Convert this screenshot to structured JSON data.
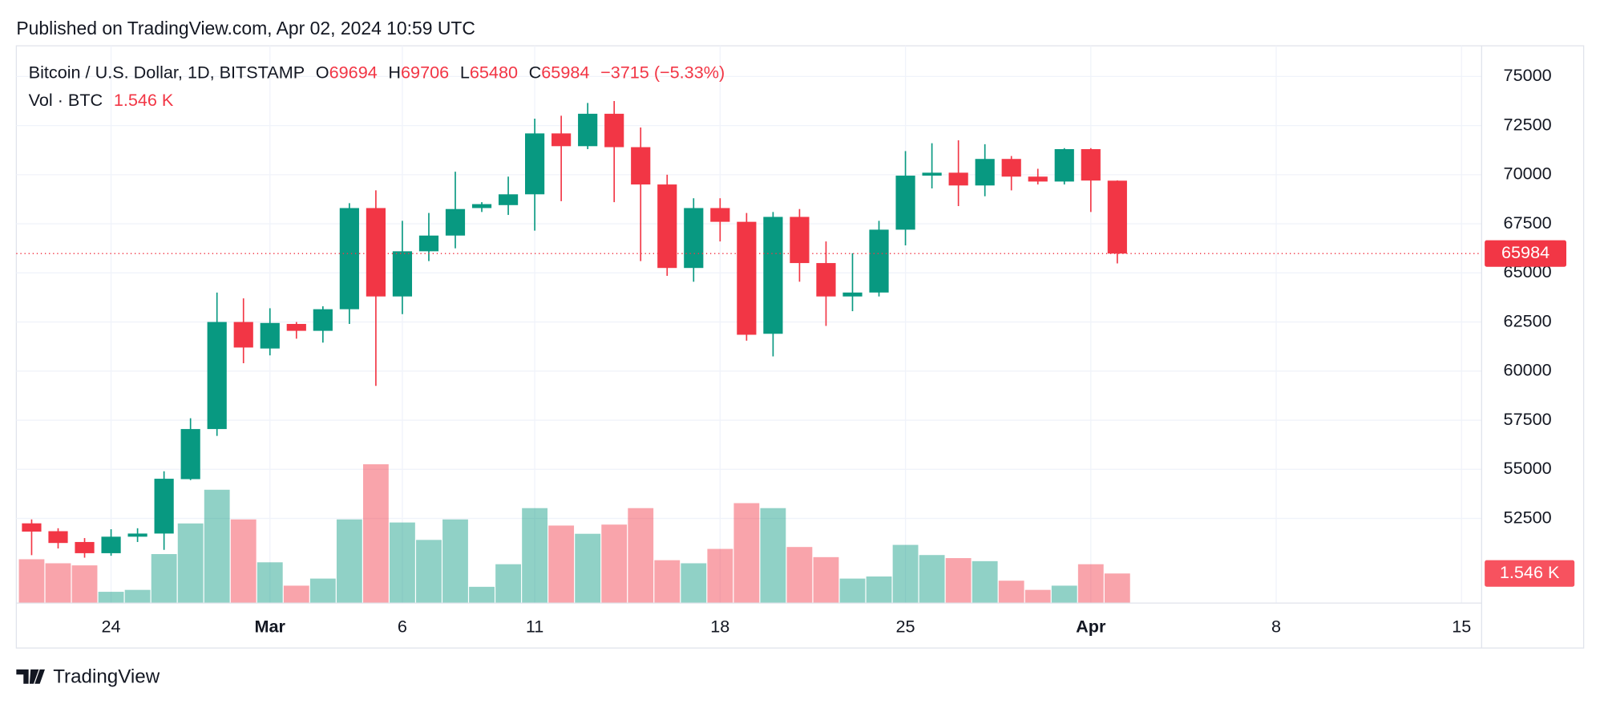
{
  "published": "Published on TradingView.com, Apr 02, 2024 10:59 UTC",
  "brand": "TradingView",
  "chart_data": {
    "type": "candlestick",
    "title": "Bitcoin / U.S. Dollar, 1D, BITSTAMP",
    "ohlc_labels": {
      "open": "O",
      "high": "H",
      "low": "L",
      "close": "C"
    },
    "change_label": "−3715 (−5.33%)",
    "up_color": "#089981",
    "down_color": "#f23645",
    "x": [
      "Feb 21",
      "Feb 22",
      "Feb 23",
      "Feb 24",
      "Feb 25",
      "Feb 26",
      "Feb 27",
      "Feb 28",
      "Feb 29",
      "Mar 1",
      "Mar 2",
      "Mar 3",
      "Mar 4",
      "Mar 5",
      "Mar 6",
      "Mar 7",
      "Mar 8",
      "Mar 9",
      "Mar 10",
      "Mar 11",
      "Mar 12",
      "Mar 13",
      "Mar 14",
      "Mar 15",
      "Mar 16",
      "Mar 17",
      "Mar 18",
      "Mar 19",
      "Mar 20",
      "Mar 21",
      "Mar 22",
      "Mar 23",
      "Mar 24",
      "Mar 25",
      "Mar 26",
      "Mar 27",
      "Mar 28",
      "Mar 29",
      "Mar 30",
      "Mar 31",
      "Apr 1",
      "Apr 2"
    ],
    "open": [
      52250,
      51850,
      51300,
      50730,
      51570,
      51730,
      54500,
      57050,
      62500,
      61150,
      62400,
      62050,
      63150,
      68300,
      63800,
      66100,
      66900,
      68300,
      68450,
      69000,
      72100,
      71450,
      73100,
      71400,
      69500,
      65250,
      68300,
      67600,
      61900,
      67850,
      65500,
      63800,
      64000,
      67200,
      69950,
      70100,
      69450,
      70800,
      69900,
      69650,
      71300,
      69694
    ],
    "high": [
      52450,
      52000,
      51500,
      51950,
      52000,
      54900,
      57600,
      64000,
      63700,
      63200,
      62500,
      63300,
      68550,
      69200,
      67650,
      68050,
      70150,
      68600,
      69900,
      72850,
      73000,
      73650,
      73750,
      72400,
      70000,
      68800,
      68800,
      68050,
      68100,
      68250,
      66600,
      66000,
      67650,
      71200,
      71600,
      71750,
      71550,
      70950,
      70300,
      71350,
      71350,
      69706
    ],
    "low": [
      50630,
      50970,
      50500,
      50600,
      51300,
      50900,
      54450,
      56700,
      60400,
      60800,
      61650,
      61450,
      62400,
      59250,
      62900,
      65600,
      66250,
      68100,
      67950,
      67150,
      68650,
      71300,
      68600,
      65600,
      64850,
      64550,
      66600,
      61550,
      60750,
      64550,
      62300,
      63050,
      63800,
      66400,
      69300,
      68400,
      68900,
      69200,
      69500,
      69500,
      68100,
      65480
    ],
    "close": [
      51830,
      51250,
      50730,
      51570,
      51730,
      54520,
      57050,
      62500,
      61200,
      62450,
      62050,
      63150,
      68300,
      63800,
      66100,
      66900,
      68250,
      68500,
      69000,
      72100,
      71450,
      73100,
      71400,
      69500,
      65250,
      68300,
      67600,
      61850,
      67850,
      65500,
      63800,
      64000,
      67200,
      69950,
      70100,
      69450,
      70800,
      69900,
      69650,
      71300,
      69700,
      65984
    ],
    "volume": {
      "name": "Vol · BTC",
      "values": [
        2.29,
        2.08,
        1.97,
        0.59,
        0.69,
        2.56,
        4.16,
        5.92,
        4.37,
        2.13,
        0.91,
        1.28,
        4.37,
        7.25,
        4.21,
        3.3,
        4.37,
        0.85,
        2.03,
        4.96,
        4.05,
        3.62,
        4.1,
        4.96,
        2.24,
        2.08,
        2.83,
        5.22,
        4.96,
        2.93,
        2.4,
        1.28,
        1.39,
        3.04,
        2.51,
        2.35,
        2.19,
        1.17,
        0.69,
        0.91,
        2.03,
        1.546
      ],
      "value_labels": [
        null,
        null,
        null,
        null,
        null,
        null,
        null,
        null,
        null,
        null,
        null,
        null,
        null,
        null,
        null,
        null,
        null,
        null,
        null,
        null,
        null,
        null,
        null,
        null,
        null,
        null,
        null,
        null,
        null,
        null,
        null,
        null,
        null,
        null,
        null,
        null,
        null,
        null,
        null,
        null,
        null,
        "1.546 K"
      ]
    },
    "ylim": [
      48190,
      76560
    ],
    "yticks": [
      52500,
      55000,
      57500,
      60000,
      62500,
      65000,
      67500,
      70000,
      72500,
      75000
    ],
    "xticks": [
      {
        "value": "Feb 24",
        "label": "24"
      },
      {
        "value": "Mar 1",
        "label": "Mar"
      },
      {
        "value": "Mar 6",
        "label": "6"
      },
      {
        "value": "Mar 11",
        "label": "11"
      },
      {
        "value": "Mar 18",
        "label": "18"
      },
      {
        "value": "Mar 25",
        "label": "25"
      },
      {
        "value": "Apr 1",
        "label": "Apr"
      },
      {
        "value": "Apr 8",
        "label": "8"
      },
      {
        "value": "Apr 15",
        "label": "15"
      }
    ],
    "grid": true
  }
}
